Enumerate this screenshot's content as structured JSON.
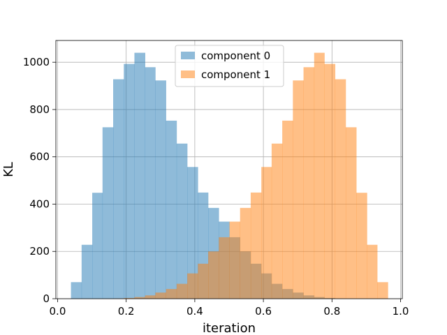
{
  "chart_data": {
    "type": "histogram",
    "title": "",
    "xlabel": "iteration",
    "ylabel": "KL",
    "xlim": [
      -0.005,
      1.005
    ],
    "ylim": [
      0,
      1092
    ],
    "xticks": [
      0.0,
      0.2,
      0.4,
      0.6,
      0.8,
      1.0
    ],
    "xtick_labels": [
      "0.0",
      "0.2",
      "0.4",
      "0.6",
      "0.8",
      "1.0"
    ],
    "yticks": [
      0,
      200,
      400,
      600,
      800,
      1000
    ],
    "ytick_labels": [
      "0",
      "200",
      "400",
      "600",
      "800",
      "1000"
    ],
    "grid": true,
    "legend_position": "top-center",
    "overlap_color": "#bd9f83",
    "series": [
      {
        "name": "component 0",
        "color": "#1f77b4",
        "opacity": 0.5,
        "bin_edges": [
          0.039,
          0.07,
          0.101,
          0.131,
          0.162,
          0.193,
          0.224,
          0.255,
          0.285,
          0.316,
          0.347,
          0.378,
          0.409,
          0.439,
          0.47,
          0.501,
          0.532,
          0.563,
          0.594,
          0.624,
          0.655,
          0.686,
          0.717,
          0.748,
          0.778,
          0.809,
          0.84,
          0.871,
          0.902,
          0.932,
          0.963
        ],
        "counts": [
          70,
          228,
          448,
          725,
          928,
          993,
          1040,
          979,
          923,
          753,
          656,
          557,
          449,
          384,
          326,
          260,
          200,
          148,
          107,
          63,
          41,
          26,
          14,
          7,
          3,
          1,
          0,
          0,
          0,
          0
        ]
      },
      {
        "name": "component 1",
        "color": "#ff7f0e",
        "opacity": 0.5,
        "bin_edges": [
          0.039,
          0.07,
          0.101,
          0.131,
          0.162,
          0.193,
          0.224,
          0.255,
          0.285,
          0.316,
          0.347,
          0.378,
          0.409,
          0.439,
          0.47,
          0.501,
          0.532,
          0.563,
          0.594,
          0.624,
          0.655,
          0.686,
          0.717,
          0.748,
          0.778,
          0.809,
          0.84,
          0.871,
          0.902,
          0.932,
          0.963
        ],
        "counts": [
          0,
          0,
          0,
          0,
          1,
          3,
          7,
          14,
          26,
          41,
          63,
          107,
          148,
          200,
          260,
          326,
          384,
          449,
          557,
          656,
          753,
          923,
          979,
          1040,
          993,
          928,
          725,
          448,
          228,
          70
        ]
      }
    ]
  }
}
